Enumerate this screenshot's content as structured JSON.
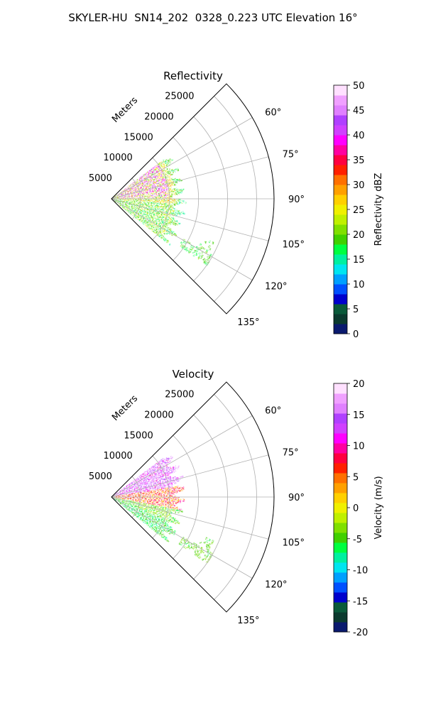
{
  "suptitle": "SKYLER-HU  SN14_202  0328_0.223 UTC Elevation 16°",
  "chart_data": [
    {
      "type": "polar_sector_radar",
      "title": "Reflectivity",
      "radial_label": "Meters",
      "radial_ticks": [
        "5000",
        "10000",
        "15000",
        "20000",
        "25000"
      ],
      "r_max": 28000,
      "theta_range_deg": [
        45,
        135
      ],
      "angle_ticks": [
        60,
        75,
        90,
        105,
        120,
        135
      ],
      "angle_tick_labels": [
        "60°",
        "75°",
        "90°",
        "105°",
        "120°",
        "135°"
      ],
      "grid": true,
      "colorbar": {
        "label": "Reflectivity dBZ",
        "min": 0,
        "max": 50,
        "ticks": [
          "0",
          "5",
          "10",
          "15",
          "20",
          "25",
          "30",
          "35",
          "40",
          "45",
          "50"
        ],
        "palette": [
          "#0a1a6e",
          "#0b3a2e",
          "#0a5a3a",
          "#0000cd",
          "#0050ff",
          "#00a0ff",
          "#00e5f0",
          "#00f0a0",
          "#00ff40",
          "#40d000",
          "#80e000",
          "#c0f000",
          "#f0f000",
          "#ffd000",
          "#ffa000",
          "#ff7000",
          "#ff2000",
          "#ff0040",
          "#ff00a0",
          "#ff00ff",
          "#d040ff",
          "#b040ff",
          "#e080ff",
          "#f0a0ff",
          "#ffe0ff"
        ]
      },
      "echo_regions": [
        {
          "az_range": [
            52,
            90
          ],
          "r_range": [
            0,
            13000
          ],
          "dominant": "20-30 dBZ"
        },
        {
          "az_range": [
            90,
            128
          ],
          "r_range": [
            0,
            12000
          ],
          "dominant": "20-25 dBZ"
        },
        {
          "az_range": [
            60,
            85
          ],
          "r_range": [
            1000,
            9000
          ],
          "dominant": "35-45 dBZ"
        },
        {
          "az_range": [
            118,
            124
          ],
          "r_range": [
            14000,
            20000
          ],
          "dominant": "15-20 dBZ"
        }
      ]
    },
    {
      "type": "polar_sector_radar",
      "title": "Velocity",
      "radial_label": "Meters",
      "radial_ticks": [
        "5000",
        "10000",
        "15000",
        "20000",
        "25000"
      ],
      "r_max": 28000,
      "theta_range_deg": [
        45,
        135
      ],
      "angle_ticks": [
        60,
        75,
        90,
        105,
        120,
        135
      ],
      "angle_tick_labels": [
        "60°",
        "75°",
        "90°",
        "105°",
        "120°",
        "135°"
      ],
      "grid": true,
      "colorbar": {
        "label": "Velocity (m/s)",
        "min": -20,
        "max": 20,
        "ticks": [
          "-20",
          "-15",
          "-10",
          "-5",
          "0",
          "5",
          "10",
          "15",
          "20"
        ],
        "palette": [
          "#0a1a6e",
          "#0b3a2e",
          "#0a5a3a",
          "#0000cd",
          "#0050ff",
          "#00a0ff",
          "#00e5f0",
          "#00f0a0",
          "#00ff40",
          "#40d000",
          "#80e000",
          "#c0f000",
          "#f0f000",
          "#ffd000",
          "#ffa000",
          "#ff7000",
          "#ff2000",
          "#ff0040",
          "#ff00a0",
          "#ff00ff",
          "#d040ff",
          "#b040ff",
          "#e080ff",
          "#f0a0ff",
          "#ffe0ff"
        ]
      },
      "echo_regions": [
        {
          "az_range": [
            52,
            80
          ],
          "r_range": [
            0,
            13000
          ],
          "dominant": "10-15 m/s"
        },
        {
          "az_range": [
            80,
            100
          ],
          "r_range": [
            0,
            12000
          ],
          "dominant": "0-10 m/s"
        },
        {
          "az_range": [
            100,
            128
          ],
          "r_range": [
            0,
            12000
          ],
          "dominant": "-8 to -3 m/s"
        },
        {
          "az_range": [
            118,
            124
          ],
          "r_range": [
            14000,
            20000
          ],
          "dominant": "-5 m/s"
        }
      ]
    }
  ]
}
